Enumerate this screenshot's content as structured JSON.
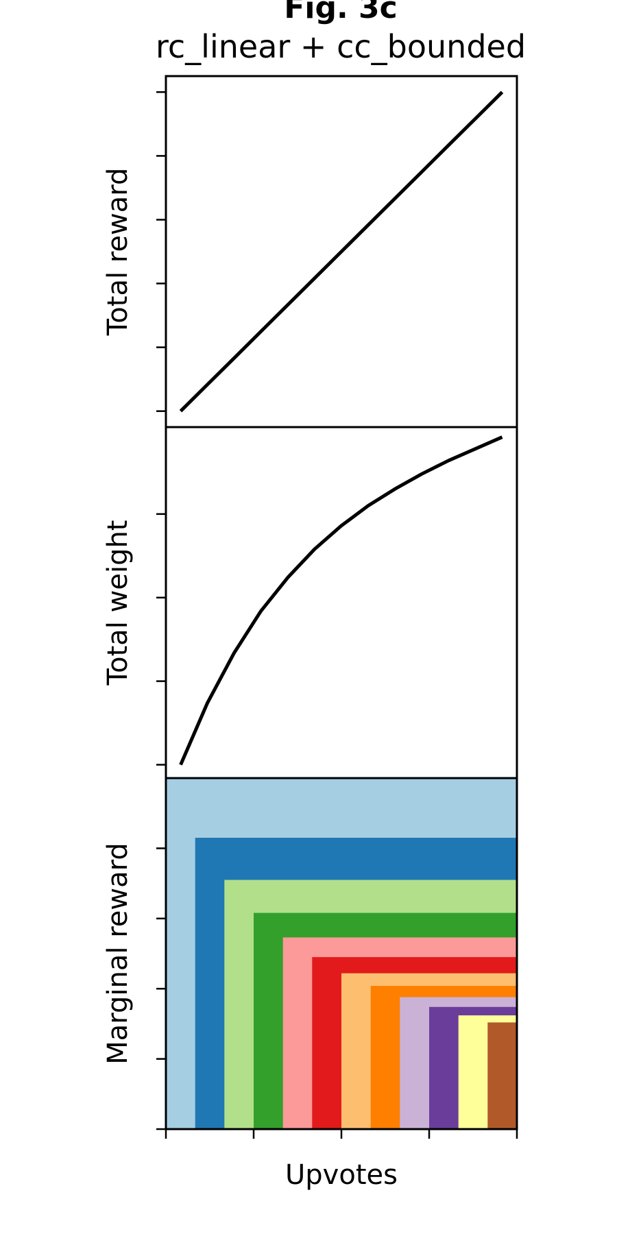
{
  "figure": {
    "suptitle": "Fig. 3c",
    "subtitle": "rc_linear + cc_bounded"
  },
  "chart_data": [
    {
      "type": "line",
      "panel": "top",
      "title": "",
      "xlabel": "",
      "ylabel": "Total reward",
      "x": [
        0,
        1,
        2,
        3,
        4,
        5,
        6,
        7,
        8,
        9,
        10,
        11,
        12
      ],
      "series": [
        {
          "values": [
            0,
            1,
            2,
            3,
            4,
            5,
            6,
            7,
            8,
            9,
            10,
            11,
            12
          ],
          "color": "#000000"
        }
      ],
      "xlim": [
        -0.55,
        12.55
      ],
      "ylim": [
        -0.6,
        12.6
      ],
      "xticks": [],
      "yticks": [
        0,
        2.4,
        4.8,
        7.2,
        9.6,
        12
      ],
      "show_tick_labels": false,
      "grid": false,
      "legend": "none"
    },
    {
      "type": "line",
      "panel": "middle",
      "title": "",
      "xlabel": "",
      "ylabel": "Total weight",
      "x": [
        0,
        1,
        2,
        3,
        4,
        5,
        6,
        7,
        8,
        9,
        10,
        11,
        12
      ],
      "series": [
        {
          "values": [
            0.0,
            1.85,
            3.35,
            4.6,
            5.6,
            6.45,
            7.15,
            7.75,
            8.25,
            8.7,
            9.1,
            9.45,
            9.8
          ],
          "color": "#000000"
        }
      ],
      "xlim": [
        -0.55,
        12.55
      ],
      "ylim": [
        -0.4,
        10.1
      ],
      "xticks": [],
      "yticks": [
        0,
        2.5,
        5,
        7.5
      ],
      "show_tick_labels": false,
      "grid": false,
      "legend": "none"
    },
    {
      "type": "area",
      "panel": "bottom",
      "title": "",
      "xlabel": "Upvotes",
      "ylabel": "Marginal reward",
      "x": [
        0,
        1,
        2,
        3,
        4,
        5,
        6,
        7,
        8,
        9,
        10,
        11,
        12
      ],
      "series": [
        {
          "start": 0,
          "height": 5.0,
          "color": "#a6cee3"
        },
        {
          "start": 1,
          "height": 4.15,
          "color": "#1f78b4"
        },
        {
          "start": 2,
          "height": 3.55,
          "color": "#b2df8a"
        },
        {
          "start": 3,
          "height": 3.08,
          "color": "#33a02c"
        },
        {
          "start": 4,
          "height": 2.73,
          "color": "#fb9a99"
        },
        {
          "start": 5,
          "height": 2.45,
          "color": "#e31a1c"
        },
        {
          "start": 6,
          "height": 2.22,
          "color": "#fdbf6f"
        },
        {
          "start": 7,
          "height": 2.04,
          "color": "#ff7f00"
        },
        {
          "start": 8,
          "height": 1.88,
          "color": "#cab2d6"
        },
        {
          "start": 9,
          "height": 1.74,
          "color": "#6a3d9a"
        },
        {
          "start": 10,
          "height": 1.62,
          "color": "#ffff99"
        },
        {
          "start": 11,
          "height": 1.52,
          "color": "#b15928"
        }
      ],
      "xlim": [
        0,
        12
      ],
      "ylim": [
        0,
        5.0
      ],
      "xticks": [
        0,
        3,
        6,
        9,
        12
      ],
      "yticks": [
        0,
        1,
        2,
        3,
        4
      ],
      "show_tick_labels": false,
      "grid": false,
      "legend": "none"
    }
  ]
}
